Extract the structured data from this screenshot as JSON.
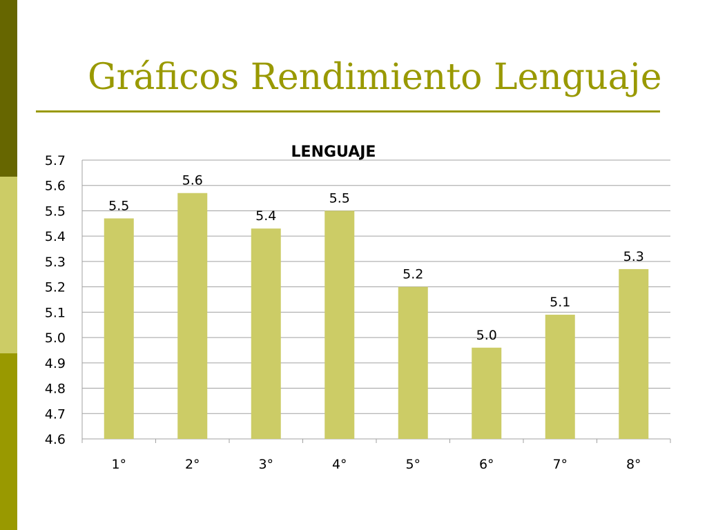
{
  "slide": {
    "title": "Gráficos Rendimiento Lenguaje"
  },
  "colors": {
    "band_top": "#666600",
    "band_mid": "#CCCC66",
    "band_bottom": "#999900",
    "title": "#999900",
    "bar": "#CCCC66",
    "grid": "#A0A0A0"
  },
  "chart_data": {
    "type": "bar",
    "title": "LENGUAJE",
    "categories": [
      "1°",
      "2°",
      "3°",
      "4°",
      "5°",
      "6°",
      "7°",
      "8°"
    ],
    "values": [
      5.47,
      5.57,
      5.43,
      5.5,
      5.2,
      4.96,
      5.09,
      5.27
    ],
    "data_labels": [
      "5.5",
      "5.6",
      "5.4",
      "5.5",
      "5.2",
      "5.0",
      "5.1",
      "5.3"
    ],
    "y_ticks": [
      "4.6",
      "4.7",
      "4.8",
      "4.9",
      "5.0",
      "5.1",
      "5.2",
      "5.3",
      "5.4",
      "5.5",
      "5.6",
      "5.7"
    ],
    "ylim": [
      4.6,
      5.7
    ],
    "grid": true,
    "legend": false,
    "xlabel": "",
    "ylabel": ""
  }
}
